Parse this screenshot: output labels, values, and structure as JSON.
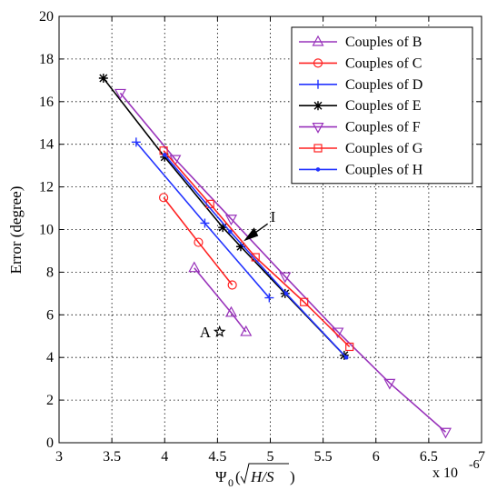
{
  "chart_data": {
    "type": "line",
    "xlabel": "Ψ",
    "xlabel_subscript": "0",
    "xlabel_unit": "H/S",
    "ylabel": "Error (degree)",
    "x_multiplier": "x 10",
    "x_multiplier_exp": "-6",
    "xlim": [
      3,
      7
    ],
    "ylim": [
      0,
      20
    ],
    "xticks": [
      3,
      3.5,
      4,
      4.5,
      5,
      5.5,
      6,
      6.5,
      7
    ],
    "xtick_labels": [
      "3",
      "3.5",
      "4",
      "4.5",
      "5",
      "5.5",
      "6",
      "6.5",
      "7"
    ],
    "yticks": [
      0,
      2,
      4,
      6,
      8,
      10,
      12,
      14,
      16,
      18,
      20
    ],
    "ytick_labels": [
      "0",
      "2",
      "4",
      "6",
      "8",
      "10",
      "12",
      "14",
      "16",
      "18",
      "20"
    ],
    "grid": true,
    "legend_position": "top-right",
    "series": [
      {
        "name": "Couples of B",
        "color": "#9933bb",
        "marker": "triangle-up",
        "x": [
          4.28,
          4.63,
          4.77
        ],
        "y": [
          8.2,
          6.1,
          5.2
        ]
      },
      {
        "name": "Couples of C",
        "color": "#ff2222",
        "marker": "circle",
        "x": [
          3.99,
          4.32,
          4.64
        ],
        "y": [
          11.5,
          9.4,
          7.4
        ]
      },
      {
        "name": "Couples of D",
        "color": "#2233ff",
        "marker": "plus",
        "x": [
          3.73,
          4.38,
          4.99
        ],
        "y": [
          14.1,
          10.3,
          6.8
        ]
      },
      {
        "name": "Couples of E",
        "color": "#000000",
        "marker": "asterisk",
        "x": [
          3.42,
          4.0,
          4.55,
          4.72,
          5.14,
          5.7
        ],
        "y": [
          17.1,
          13.4,
          10.1,
          9.2,
          7.0,
          4.1
        ]
      },
      {
        "name": "Couples of F",
        "color": "#9933bb",
        "marker": "triangle-down",
        "x": [
          3.58,
          4.1,
          4.63,
          5.14,
          5.64,
          6.13,
          6.66
        ],
        "y": [
          16.4,
          13.3,
          10.5,
          7.8,
          5.2,
          2.8,
          0.5
        ]
      },
      {
        "name": "Couples of G",
        "color": "#ff2222",
        "marker": "square",
        "x": [
          3.99,
          4.43,
          4.86,
          5.32,
          5.75
        ],
        "y": [
          13.7,
          11.2,
          8.7,
          6.6,
          4.5
        ]
      },
      {
        "name": "Couples of H",
        "color": "#2233ff",
        "marker": "dot",
        "x": [
          4.0,
          4.62,
          5.15,
          5.72
        ],
        "y": [
          13.5,
          9.9,
          7.0,
          4.0
        ]
      }
    ],
    "annotations": [
      {
        "label": "A",
        "x": 4.52,
        "y": 5.2,
        "marker": "star"
      },
      {
        "label": "I",
        "x": 4.76,
        "y": 9.5,
        "marker": "arrow"
      }
    ]
  }
}
